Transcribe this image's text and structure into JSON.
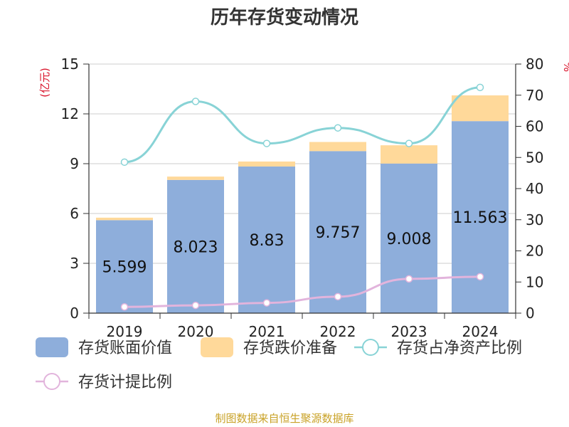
{
  "title": "历年存货变动情况",
  "source": "制图数据来自恒生聚源数据库",
  "colors": {
    "book_value": "#8eaedb",
    "impairment": "#ffd99a",
    "ratio_net_assets": "#88d3d6",
    "provision_ratio": "#e2b4dc",
    "axis_label": "#d9142b"
  },
  "chart_data": {
    "type": "bar",
    "title": "历年存货变动情况",
    "categories": [
      "2019",
      "2020",
      "2021",
      "2022",
      "2023",
      "2024"
    ],
    "left_axis": {
      "label": "(亿元)",
      "ylim": [
        0,
        15
      ],
      "ticks": [
        0,
        3,
        6,
        9,
        12,
        15
      ]
    },
    "right_axis": {
      "label": "%",
      "ylim": [
        0,
        80
      ],
      "ticks": [
        0,
        10,
        20,
        30,
        40,
        50,
        60,
        70,
        80
      ]
    },
    "series": [
      {
        "name": "存货账面价值",
        "type": "bar",
        "axis": "left",
        "stack": "inv",
        "values": [
          5.599,
          8.023,
          8.83,
          9.757,
          9.008,
          11.563
        ],
        "labels": [
          "5.599",
          "8.023",
          "8.83",
          "9.757",
          "9.008",
          "11.563"
        ]
      },
      {
        "name": "存货跌价准备",
        "type": "bar",
        "axis": "left",
        "stack": "inv",
        "values": [
          0.15,
          0.2,
          0.3,
          0.55,
          1.1,
          1.55
        ]
      },
      {
        "name": "存货占净资产比例",
        "type": "line",
        "axis": "right",
        "values": [
          48.5,
          68.0,
          54.5,
          59.5,
          54.5,
          72.5
        ]
      },
      {
        "name": "存货计提比例",
        "type": "line",
        "axis": "right",
        "values": [
          2.0,
          2.5,
          3.3,
          5.3,
          11.0,
          11.7
        ]
      }
    ],
    "grid": true,
    "legend_position": "bottom"
  }
}
